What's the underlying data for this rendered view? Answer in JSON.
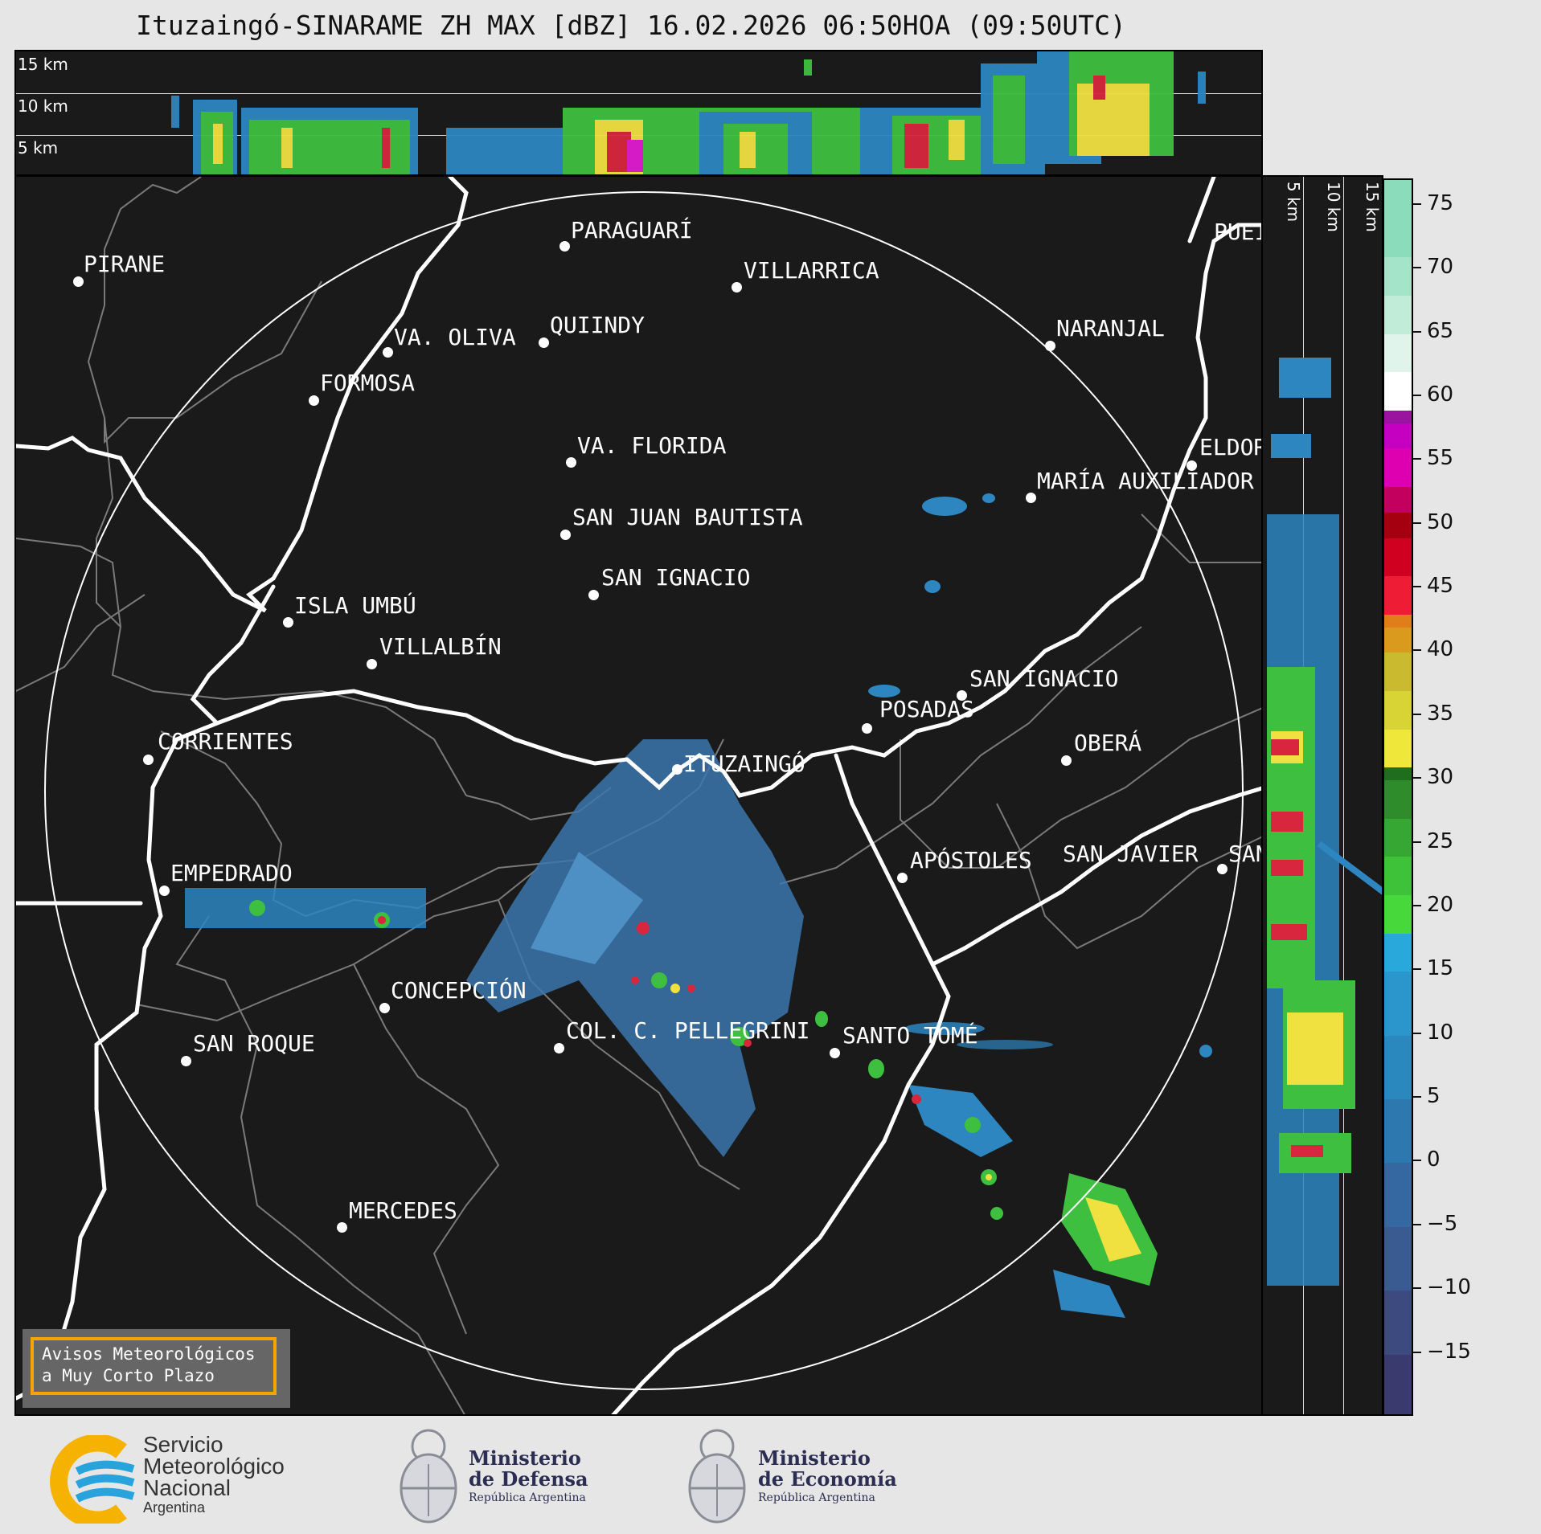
{
  "title": "Ituzaingó-SINARAME ZH MAX [dBZ] 16.02.2026 06:50HOA (09:50UTC)",
  "top_panel": {
    "height_labels": [
      "15 km",
      "10 km",
      "5 km"
    ]
  },
  "side_panel": {
    "height_labels": [
      "5 km",
      "10 km",
      "15 km"
    ]
  },
  "colorbar": {
    "unit": "dBZ",
    "range": [
      -20,
      77
    ],
    "tick_labels": [
      "75",
      "70",
      "65",
      "60",
      "55",
      "50",
      "45",
      "40",
      "35",
      "30",
      "25",
      "20",
      "15",
      "10",
      "5",
      "0",
      "−5",
      "−10",
      "−15"
    ],
    "tick_values": [
      75,
      70,
      65,
      60,
      55,
      50,
      45,
      40,
      35,
      30,
      25,
      20,
      15,
      10,
      5,
      0,
      -5,
      -10,
      -15
    ]
  },
  "map": {
    "cities": [
      {
        "name": "PIRANE"
      },
      {
        "name": "PARAGUARÍ"
      },
      {
        "name": "VILLARRICA"
      },
      {
        "name": "VA. OLIVA"
      },
      {
        "name": "QUIINDY"
      },
      {
        "name": "NARANJAL"
      },
      {
        "name": "FORMOSA"
      },
      {
        "name": "VA. FLORIDA"
      },
      {
        "name": "ELDOR"
      },
      {
        "name": "MARÍA AUXILIADOR"
      },
      {
        "name": "SAN JUAN BAUTISTA"
      },
      {
        "name": "SAN IGNACIO"
      },
      {
        "name": "ISLA UMBÚ"
      },
      {
        "name": "VILLALBÍN"
      },
      {
        "name": "SAN IGNACIO"
      },
      {
        "name": "POSADAS"
      },
      {
        "name": "CORRIENTES"
      },
      {
        "name": "ITUZAINGÓ"
      },
      {
        "name": "OBERÁ"
      },
      {
        "name": "APÓSTOLES"
      },
      {
        "name": "SAN JAVIER"
      },
      {
        "name": "SAN"
      },
      {
        "name": "EMPEDRADO"
      },
      {
        "name": "CONCEPCIÓN"
      },
      {
        "name": "COL. C. PELLEGRINI"
      },
      {
        "name": "SANTO TOMÉ"
      },
      {
        "name": "SAN ROQUE"
      },
      {
        "name": "MERCEDES"
      },
      {
        "name": "PUEI"
      }
    ]
  },
  "alert_box": {
    "line1": "Avisos Meteorológicos",
    "line2": "a Muy Corto Plazo"
  },
  "logos": {
    "smn": [
      "Servicio",
      "Meteorológico",
      "Nacional",
      "Argentina"
    ],
    "defensa": [
      "Ministerio",
      "de Defensa",
      "República Argentina"
    ],
    "economia": [
      "Ministerio",
      "de Economía",
      "República Argentina"
    ]
  },
  "colors": {
    "panel_bg": "#1a1a1a",
    "borders": "#ffffff",
    "alert_border": "#f6a400",
    "smn_yellow": "#f6b200",
    "smn_blue": "#29a3dc"
  }
}
